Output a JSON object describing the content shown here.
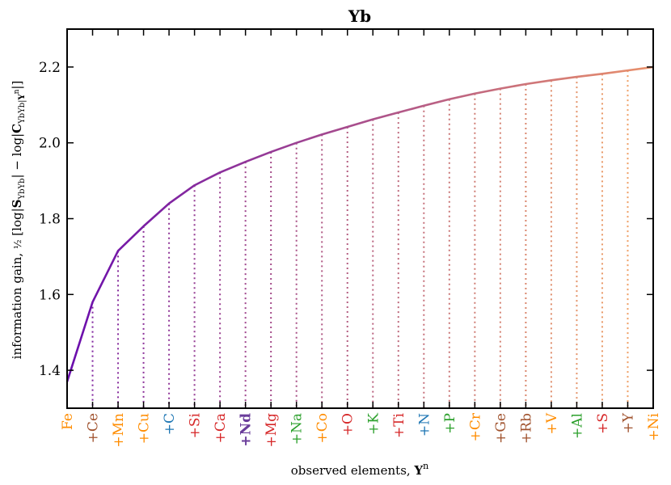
{
  "chart_data": {
    "type": "line",
    "title": "Yb",
    "xlabel": "observed elements, ",
    "xlabel_math": "Y",
    "xlabel_sup": "n",
    "ylabel": "information gain, ½ [log|S_YbYb| − log|C_YbYb|Yⁿ|]",
    "ylim": [
      1.3,
      2.3
    ],
    "yticks": [
      1.4,
      1.6,
      1.8,
      2.0,
      2.2
    ],
    "ytick_labels": [
      "1.4",
      "1.6",
      "1.8",
      "2.0",
      "2.2"
    ],
    "grid": false,
    "legend": "none",
    "categories": [
      "Fe",
      "+Ce",
      "+Mn",
      "+Cu",
      "+C",
      "+Si",
      "+Ca",
      "+Nd",
      "+Mg",
      "+Na",
      "+Co",
      "+O",
      "+K",
      "+Ti",
      "+N",
      "+P",
      "+Cr",
      "+Ge",
      "+Rb",
      "+V",
      "+Al",
      "+S",
      "+Y",
      "+Ni"
    ],
    "category_colors": [
      "#ff8c00",
      "#a0522d",
      "#ff8c00",
      "#ff8c00",
      "#1f77b4",
      "#d62728",
      "#d62728",
      "#6a3d9a",
      "#d62728",
      "#2ca02c",
      "#ff8c00",
      "#d62728",
      "#2ca02c",
      "#d62728",
      "#1f77b4",
      "#2ca02c",
      "#ff8c00",
      "#a0522d",
      "#a0522d",
      "#ff8c00",
      "#2ca02c",
      "#d62728",
      "#a0522d",
      "#ff8c00"
    ],
    "bold_category": "+Nd",
    "values": [
      1.37,
      1.58,
      1.715,
      1.78,
      1.84,
      1.888,
      1.922,
      1.95,
      1.976,
      2.0,
      2.022,
      2.042,
      2.062,
      2.08,
      2.098,
      2.115,
      2.13,
      2.143,
      2.155,
      2.165,
      2.174,
      2.182,
      2.191,
      2.2
    ],
    "line_color_start": "#6a0dad",
    "line_color_end": "#e9916b",
    "dotted_color_start": "#7b1fa2",
    "dotted_color_end": "#f4a460"
  }
}
